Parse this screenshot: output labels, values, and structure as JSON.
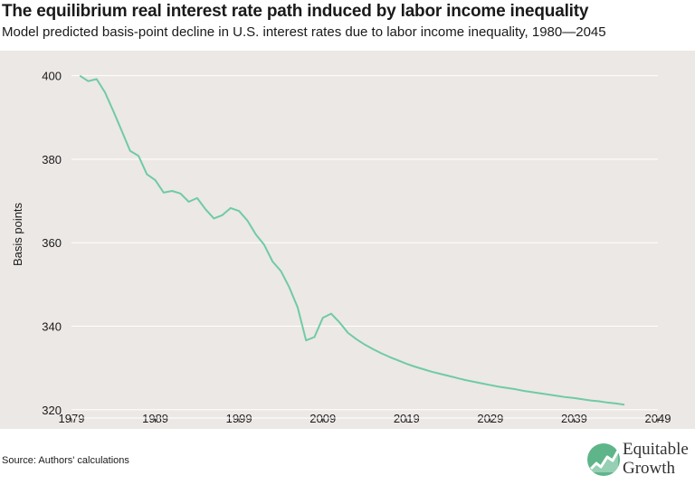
{
  "header": {
    "title": "The equilibrium real interest rate path induced by labor income inequality",
    "subtitle": "Model predicted basis-point decline in U.S. interest rates due to labor income inequality, 1980—2045"
  },
  "footer": {
    "source": "Source: Authors' calculations",
    "logo_line1": "Equitable",
    "logo_line2": "Growth"
  },
  "colors": {
    "line": "#6fcba3",
    "plot_bg": "#ece8e6",
    "grid": "#ffffff",
    "logo_green": "#5fb58a"
  },
  "chart_data": {
    "type": "line",
    "title": "The equilibrium real interest rate path induced by labor income inequality",
    "subtitle": "Model predicted basis-point decline in U.S. interest rates due to labor income inequality, 1980—2045",
    "xlabel": "",
    "ylabel": "Basis points",
    "xlim": [
      1979,
      2049
    ],
    "ylim": [
      318,
      406
    ],
    "xticks": [
      1979,
      1989,
      1999,
      2009,
      2019,
      2029,
      2039,
      2049
    ],
    "yticks": [
      320,
      340,
      360,
      380,
      400
    ],
    "grid": "horizontal",
    "x": [
      1980,
      1981,
      1982,
      1983,
      1984,
      1985,
      1986,
      1987,
      1988,
      1989,
      1990,
      1991,
      1992,
      1993,
      1994,
      1995,
      1996,
      1997,
      1998,
      1999,
      2000,
      2001,
      2002,
      2003,
      2004,
      2005,
      2006,
      2007,
      2008,
      2009,
      2010,
      2011,
      2012,
      2013,
      2014,
      2015,
      2016,
      2017,
      2018,
      2019,
      2020,
      2021,
      2022,
      2023,
      2024,
      2025,
      2026,
      2027,
      2028,
      2029,
      2030,
      2031,
      2032,
      2033,
      2034,
      2035,
      2036,
      2037,
      2038,
      2039,
      2040,
      2041,
      2042,
      2043,
      2044,
      2045
    ],
    "values": [
      400,
      398.7,
      399.2,
      396,
      391.5,
      386.8,
      382,
      380.8,
      376.4,
      375,
      372,
      372.4,
      371.8,
      369.8,
      370.7,
      368,
      365.8,
      366.6,
      368.3,
      367.6,
      365.3,
      362,
      359.5,
      355.5,
      353.2,
      349.3,
      344.5,
      336.6,
      337.4,
      342,
      343,
      340.9,
      338.4,
      336.9,
      335.6,
      334.5,
      333.5,
      332.6,
      331.8,
      331,
      330.3,
      329.7,
      329.1,
      328.6,
      328.1,
      327.6,
      327.1,
      326.7,
      326.3,
      325.9,
      325.5,
      325.2,
      324.9,
      324.5,
      324.2,
      323.9,
      323.6,
      323.3,
      323,
      322.8,
      322.5,
      322.2,
      322,
      321.7,
      321.5,
      321.2
    ]
  }
}
